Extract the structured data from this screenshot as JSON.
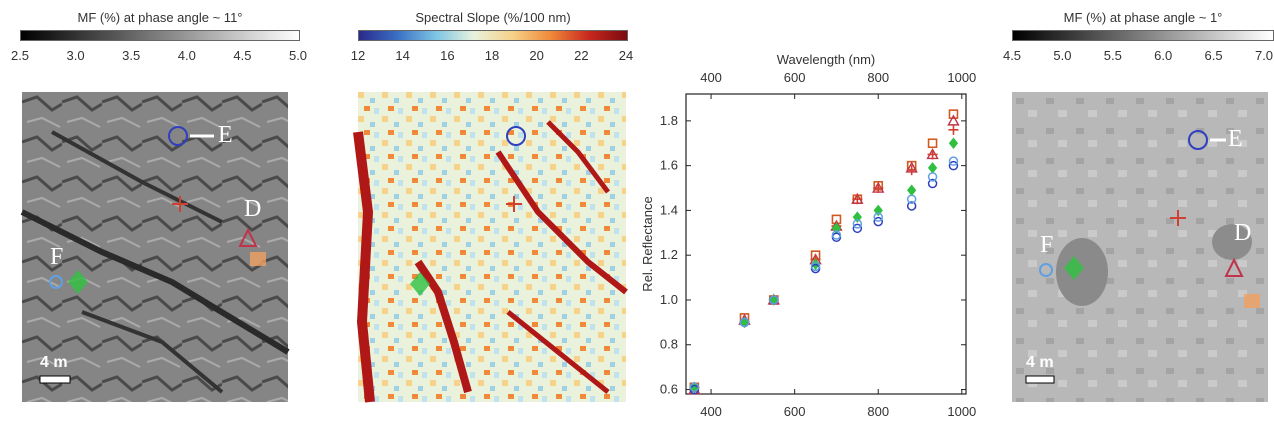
{
  "panel1": {
    "title": "MF (%) at phase angle ~ 11°",
    "ticks": [
      "2.5",
      "3.0",
      "3.5",
      "4.0",
      "4.5",
      "5.0"
    ],
    "scale_label": "4 m",
    "labels": {
      "E": "E",
      "D": "D",
      "F": "F"
    }
  },
  "panel2": {
    "title": "Spectral Slope (%/100 nm)",
    "ticks": [
      "12",
      "14",
      "16",
      "18",
      "20",
      "22",
      "24"
    ]
  },
  "panel4": {
    "title": "MF (%) at phase angle ~ 1°",
    "ticks": [
      "4.5",
      "5.0",
      "5.5",
      "6.0",
      "6.5",
      "7.0"
    ],
    "scale_label": "4 m",
    "labels": {
      "E": "E",
      "D": "D",
      "F": "F"
    }
  },
  "chart_data": {
    "type": "scatter",
    "title": "",
    "xlabel": "Wavelength (nm)",
    "ylabel": "Rel. Reflectance",
    "xlim": [
      340,
      1010
    ],
    "ylim": [
      0.58,
      1.92
    ],
    "xticks": [
      400,
      600,
      800,
      1000
    ],
    "yticks": [
      0.6,
      0.8,
      1.0,
      1.2,
      1.4,
      1.6,
      1.8
    ],
    "series": [
      {
        "marker": "square",
        "color": "#d05a20",
        "x": [
          360,
          480,
          550,
          650,
          700,
          750,
          800,
          880,
          930,
          980
        ],
        "y": [
          0.61,
          0.92,
          1.0,
          1.2,
          1.36,
          1.45,
          1.51,
          1.6,
          1.7,
          1.83
        ]
      },
      {
        "marker": "triangle",
        "color": "#c0334a",
        "x": [
          360,
          480,
          550,
          650,
          700,
          750,
          800,
          880,
          930,
          980
        ],
        "y": [
          0.6,
          0.91,
          1.0,
          1.18,
          1.33,
          1.45,
          1.5,
          1.59,
          1.65,
          1.8
        ]
      },
      {
        "marker": "plus",
        "color": "#d04030",
        "x": [
          360,
          480,
          550,
          650,
          700,
          750,
          800,
          880,
          930,
          980
        ],
        "y": [
          0.61,
          0.9,
          1.0,
          1.18,
          1.33,
          1.45,
          1.5,
          1.58,
          1.65,
          1.76
        ]
      },
      {
        "marker": "diamond",
        "color": "#30c040",
        "x": [
          360,
          480,
          550,
          650,
          700,
          750,
          800,
          880,
          930,
          980
        ],
        "y": [
          0.61,
          0.9,
          1.0,
          1.16,
          1.32,
          1.37,
          1.4,
          1.49,
          1.59,
          1.7
        ]
      },
      {
        "marker": "circle",
        "color": "#2f3fbf",
        "x": [
          360,
          480,
          550,
          650,
          700,
          750,
          800,
          880,
          930,
          980
        ],
        "y": [
          0.6,
          0.9,
          1.0,
          1.14,
          1.28,
          1.32,
          1.35,
          1.42,
          1.52,
          1.6
        ]
      },
      {
        "marker": "circle",
        "color": "#5fa0e0",
        "x": [
          360,
          480,
          550,
          650,
          700,
          750,
          800,
          880,
          930,
          980
        ],
        "y": [
          0.61,
          0.9,
          1.0,
          1.15,
          1.29,
          1.34,
          1.37,
          1.45,
          1.55,
          1.62
        ]
      }
    ]
  }
}
